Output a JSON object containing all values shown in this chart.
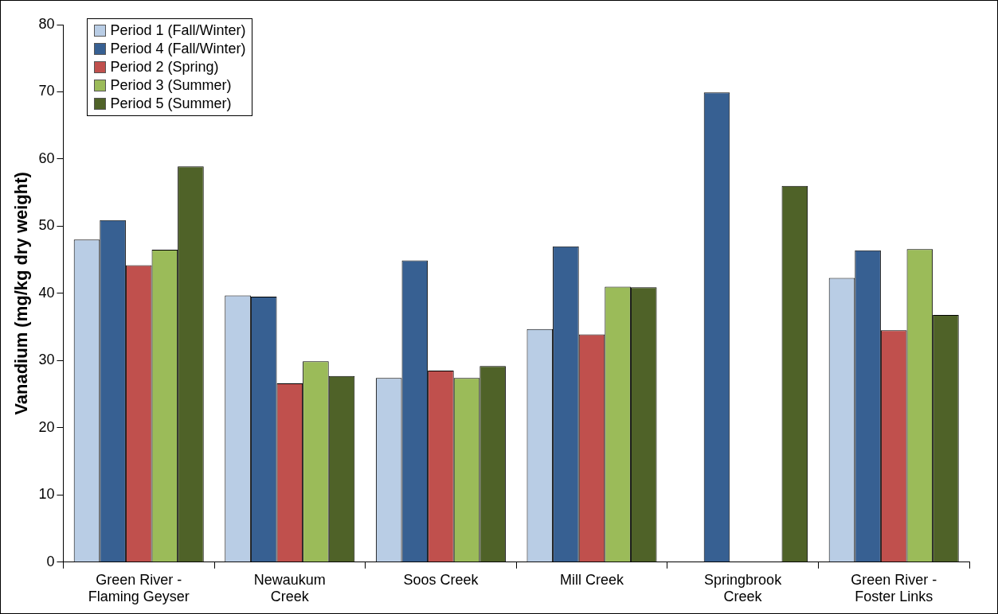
{
  "chart_data": {
    "type": "bar",
    "ylabel": "Vanadium (mg/kg dry weight)",
    "categories": [
      "Green River - Flaming Geyser",
      "Newaukum Creek",
      "Soos Creek",
      "Mill Creek",
      "Springbrook Creek",
      "Green River - Foster Links"
    ],
    "series": [
      {
        "name": "Period 1 (Fall/Winter)",
        "color": "#b9cde5",
        "values": [
          48.0,
          39.7,
          27.4,
          34.7,
          null,
          42.3
        ]
      },
      {
        "name": "Period 4 (Fall/Winter)",
        "color": "#376092",
        "values": [
          50.9,
          39.5,
          44.9,
          47.0,
          69.9,
          46.4
        ]
      },
      {
        "name": "Period 2 (Spring)",
        "color": "#c0504d",
        "values": [
          44.2,
          26.6,
          28.5,
          33.9,
          null,
          34.5
        ]
      },
      {
        "name": "Period 3 (Summer)",
        "color": "#9bbb59",
        "values": [
          46.5,
          29.9,
          27.4,
          41.0,
          null,
          46.6
        ]
      },
      {
        "name": "Period 5 (Summer)",
        "color": "#4f6228",
        "values": [
          58.9,
          27.7,
          29.2,
          40.9,
          56.0,
          36.8
        ]
      }
    ],
    "ylim": [
      0,
      80
    ],
    "yticks": [
      0,
      10,
      20,
      30,
      40,
      50,
      60,
      70,
      80
    ],
    "grid": false,
    "legend": "top left"
  }
}
